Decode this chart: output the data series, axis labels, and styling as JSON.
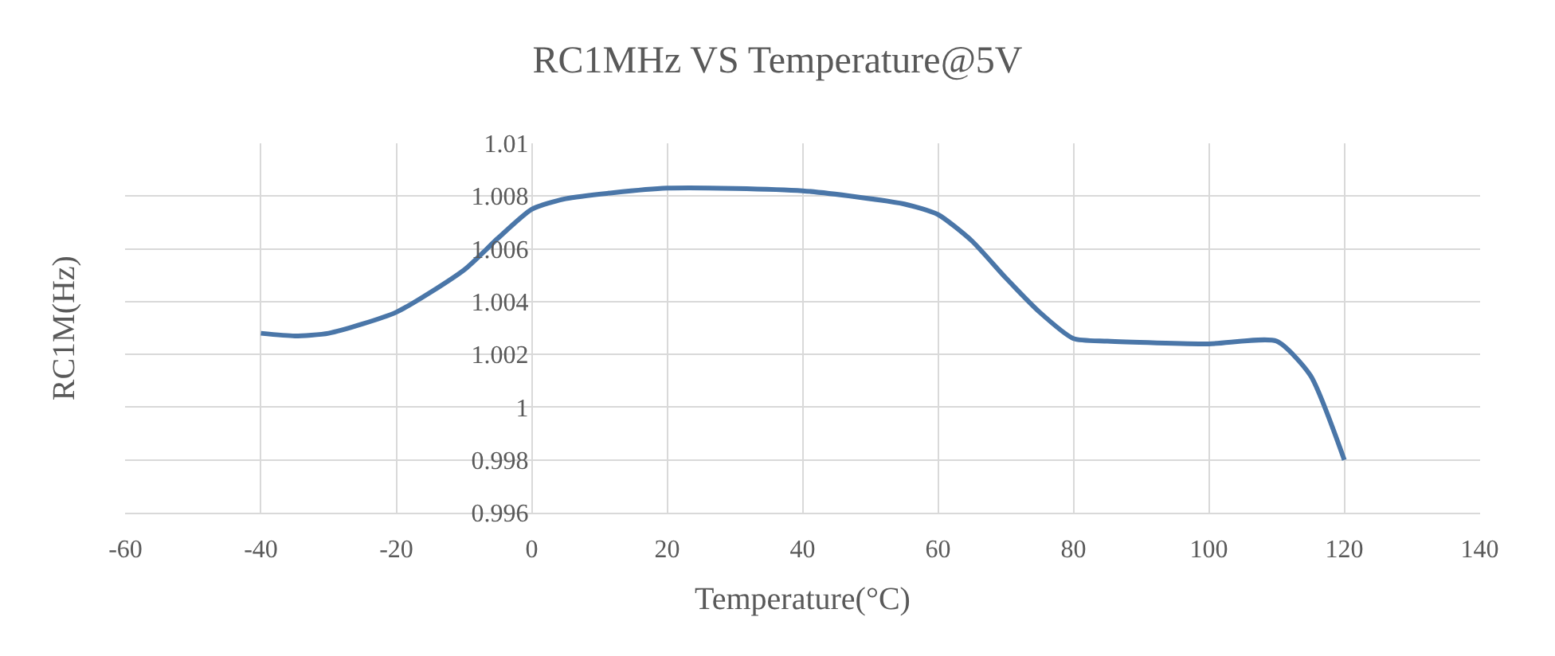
{
  "chart_data": {
    "type": "line",
    "title": "RC1MHz VS Temperature@5V",
    "xlabel": "Temperature(°C)",
    "ylabel": "RC1M(Hz)",
    "x": [
      -40,
      -35,
      -30,
      -20,
      -10,
      -5,
      0,
      5,
      20,
      40,
      55,
      60,
      65,
      70,
      75,
      80,
      85,
      100,
      110,
      115,
      120
    ],
    "series": [
      {
        "color": "#4a76a8",
        "values": [
          1.0028,
          1.0027,
          1.0028,
          1.0036,
          1.0052,
          1.0064,
          1.0075,
          1.0079,
          1.0083,
          1.0082,
          1.0077,
          1.0073,
          1.0063,
          1.0049,
          1.0036,
          1.0026,
          1.0025,
          1.0024,
          1.0025,
          1.0012,
          0.998
        ]
      }
    ],
    "xlim": [
      -60,
      140
    ],
    "xticks": [
      -60,
      -40,
      -20,
      0,
      20,
      40,
      60,
      80,
      100,
      120,
      140
    ],
    "ylim": [
      0.996,
      1.01
    ],
    "yticks": [
      0.996,
      0.998,
      1,
      1.002,
      1.004,
      1.006,
      1.008,
      1.01
    ],
    "grid": true,
    "legend": false,
    "marker": "none",
    "line_style": "solid"
  }
}
